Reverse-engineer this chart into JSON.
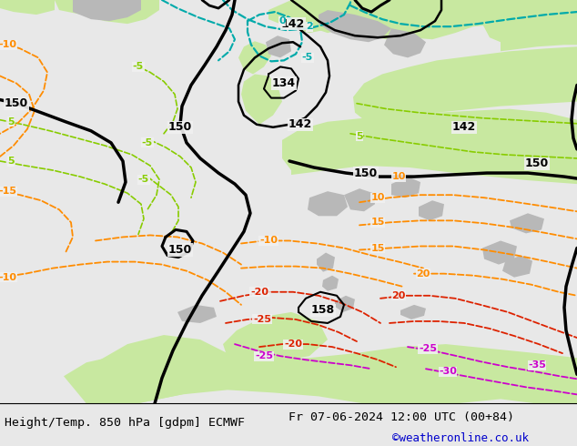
{
  "title_left": "Height/Temp. 850 hPa [gdpm] ECMWF",
  "title_right": "Fr 07-06-2024 12:00 UTC (00+84)",
  "copyright": "©weatheronline.co.uk",
  "fig_width": 6.34,
  "fig_height": 4.9,
  "dpi": 100,
  "bg_map": "#f0f0f0",
  "green_land": "#c8e8a0",
  "gray_elev": "#b8b8b8",
  "black": "#000000",
  "teal": "#00aaaa",
  "lime": "#88cc00",
  "orange": "#ff8c00",
  "red": "#dd2200",
  "magenta": "#cc00cc",
  "bottom_bg": "#e8e8e8",
  "text_blue": "#0000cc"
}
